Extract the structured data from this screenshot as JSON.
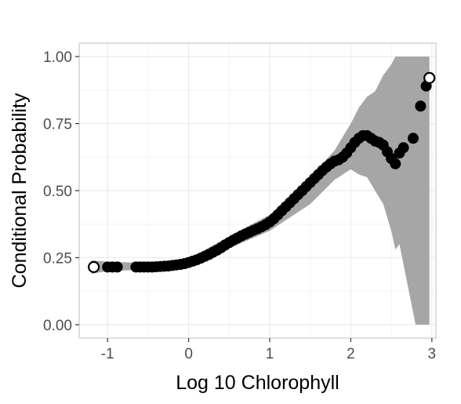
{
  "chart_data": {
    "type": "scatter",
    "xlabel": "Log 10 Chlorophyll",
    "ylabel": "Conditional Probability",
    "xlim": [
      -1.35,
      3.05
    ],
    "ylim": [
      0,
      1.0
    ],
    "x_ticks": [
      -1,
      0,
      1,
      2,
      3
    ],
    "x_tick_labels": [
      "-1",
      "0",
      "1",
      "2",
      "3"
    ],
    "y_ticks": [
      0,
      0.25,
      0.5,
      0.75,
      1.0
    ],
    "y_tick_labels": [
      "0.00",
      "0.25",
      "0.50",
      "0.75",
      "1.00"
    ],
    "grid": true,
    "colors": {
      "points": "#000000",
      "band": "#a6a6a6",
      "grid": "#ebebeb",
      "panel": "#ffffff",
      "border": "#bfbfbf"
    },
    "points": {
      "x": [
        -1.17,
        -1.0,
        -0.94,
        -0.88,
        -0.65,
        -0.6,
        -0.55,
        -0.5,
        -0.45,
        -0.4,
        -0.35,
        -0.3,
        -0.25,
        -0.2,
        -0.15,
        -0.1,
        -0.05,
        0.0,
        0.05,
        0.1,
        0.15,
        0.2,
        0.25,
        0.3,
        0.35,
        0.4,
        0.45,
        0.5,
        0.55,
        0.6,
        0.65,
        0.7,
        0.75,
        0.8,
        0.85,
        0.9,
        0.95,
        1.0,
        1.05,
        1.1,
        1.15,
        1.2,
        1.25,
        1.3,
        1.35,
        1.4,
        1.45,
        1.5,
        1.55,
        1.6,
        1.65,
        1.7,
        1.75,
        1.8,
        1.85,
        1.9,
        1.95,
        2.0,
        2.05,
        2.1,
        2.15,
        2.2,
        2.25,
        2.3,
        2.35,
        2.4,
        2.45,
        2.5,
        2.55,
        2.6,
        2.65,
        2.77,
        2.86,
        2.93,
        2.97
      ],
      "y": [
        0.215,
        0.215,
        0.215,
        0.215,
        0.215,
        0.215,
        0.215,
        0.215,
        0.215,
        0.216,
        0.217,
        0.218,
        0.219,
        0.221,
        0.223,
        0.225,
        0.228,
        0.232,
        0.237,
        0.242,
        0.248,
        0.255,
        0.262,
        0.27,
        0.278,
        0.287,
        0.297,
        0.306,
        0.315,
        0.323,
        0.331,
        0.338,
        0.345,
        0.352,
        0.358,
        0.365,
        0.373,
        0.383,
        0.395,
        0.41,
        0.425,
        0.44,
        0.455,
        0.47,
        0.485,
        0.5,
        0.515,
        0.53,
        0.545,
        0.56,
        0.575,
        0.588,
        0.6,
        0.61,
        0.615,
        0.625,
        0.64,
        0.66,
        0.68,
        0.695,
        0.705,
        0.705,
        0.695,
        0.685,
        0.68,
        0.67,
        0.645,
        0.62,
        0.6,
        0.64,
        0.66,
        0.695,
        0.815,
        0.89,
        0.92
      ]
    },
    "band": {
      "x": [
        -1.2,
        -1.0,
        -0.5,
        0.0,
        0.5,
        1.0,
        1.5,
        1.8,
        2.0,
        2.1,
        2.2,
        2.3,
        2.4,
        2.5,
        2.55,
        2.6,
        2.7,
        2.8,
        2.9,
        2.97
      ],
      "lower": [
        0.19,
        0.2,
        0.205,
        0.22,
        0.285,
        0.35,
        0.45,
        0.54,
        0.58,
        0.56,
        0.55,
        0.5,
        0.45,
        0.35,
        0.28,
        0.3,
        0.15,
        0.0,
        0.0,
        0.0
      ],
      "upper": [
        0.24,
        0.235,
        0.23,
        0.245,
        0.33,
        0.41,
        0.55,
        0.65,
        0.75,
        0.81,
        0.85,
        0.87,
        0.93,
        0.97,
        1.0,
        1.0,
        1.0,
        1.0,
        1.0,
        1.0
      ]
    }
  }
}
